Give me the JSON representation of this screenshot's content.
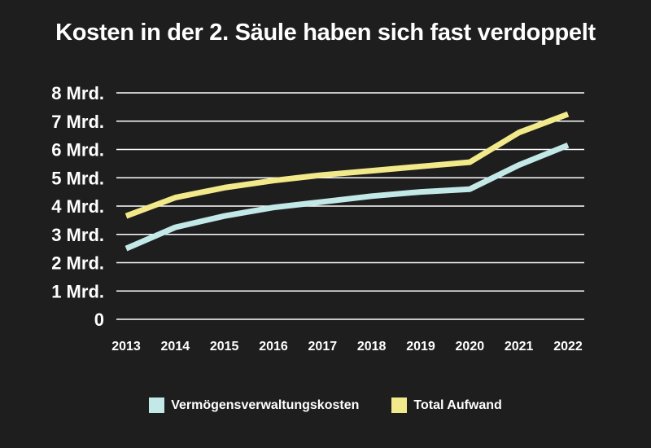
{
  "chart_data": {
    "type": "line",
    "title": "Kosten in der 2. Säule haben sich fast verdoppelt",
    "xlabel": "",
    "ylabel": "",
    "categories": [
      "2013",
      "2014",
      "2015",
      "2016",
      "2017",
      "2018",
      "2019",
      "2020",
      "2021",
      "2022"
    ],
    "ylim": [
      0,
      8
    ],
    "yticks": [
      0,
      1,
      2,
      3,
      4,
      5,
      6,
      7,
      8
    ],
    "ytick_labels": [
      "0",
      "1 Mrd.",
      "2 Mrd.",
      "3 Mrd.",
      "4 Mrd.",
      "5 Mrd.",
      "6 Mrd.",
      "7 Mrd.",
      "8 Mrd."
    ],
    "grid": true,
    "legend_position": "bottom",
    "series": [
      {
        "name": "Vermögensverwaltungskosten",
        "color": "#c3e8e8",
        "values": [
          2.5,
          3.25,
          3.65,
          3.95,
          4.15,
          4.35,
          4.5,
          4.6,
          5.45,
          6.15
        ]
      },
      {
        "name": "Total Aufwand",
        "color": "#f2e98a",
        "values": [
          3.65,
          4.3,
          4.65,
          4.9,
          5.1,
          5.25,
          5.4,
          5.55,
          6.6,
          7.25
        ]
      }
    ]
  }
}
